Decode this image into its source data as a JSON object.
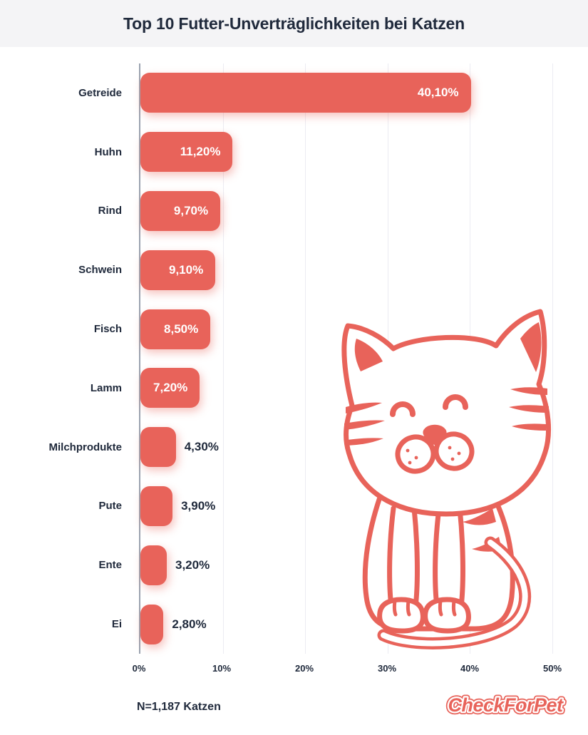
{
  "header": {
    "title": "Top 10 Futter-Unverträglichkeiten bei Katzen",
    "bg_color": "#F4F4F6",
    "text_color": "#202A3C"
  },
  "chart_data": {
    "type": "bar",
    "orientation": "horizontal",
    "title": "Top 10 Futter-Unverträglichkeiten bei Katzen",
    "categories": [
      "Getreide",
      "Huhn",
      "Rind",
      "Schwein",
      "Fisch",
      "Lamm",
      "Milchprodukte",
      "Pute",
      "Ente",
      "Ei"
    ],
    "values": [
      40.1,
      11.2,
      9.7,
      9.1,
      8.5,
      7.2,
      4.3,
      3.9,
      3.2,
      2.8
    ],
    "value_labels": [
      "40,10%",
      "11,20%",
      "9,70%",
      "9,10%",
      "8,50%",
      "7,20%",
      "4,30%",
      "3,90%",
      "3,20%",
      "2,80%"
    ],
    "xlabel": "",
    "ylabel": "",
    "xlim": [
      0,
      50
    ],
    "xticks": [
      "0%",
      "10%",
      "20%",
      "30%",
      "40%",
      "50%"
    ],
    "grid": "vertical-light",
    "legend": "none",
    "bar_color": "#E8635A",
    "inside_label_min_value": 5
  },
  "footer": {
    "sample_note": "N=1,187 Katzen",
    "logo_text": "CheckForPet"
  },
  "illustration": {
    "name": "sitting-cat-line-art",
    "color": "#E8635A"
  }
}
